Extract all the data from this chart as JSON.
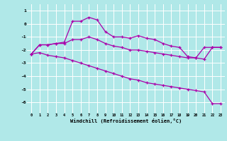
{
  "bg_color": "#b0e8e8",
  "grid_color": "#ffffff",
  "line_color": "#aa00aa",
  "x": [
    0,
    1,
    2,
    3,
    4,
    5,
    6,
    7,
    8,
    9,
    10,
    11,
    12,
    13,
    14,
    15,
    16,
    17,
    18,
    19,
    20,
    21,
    22,
    23
  ],
  "line1": [
    -2.3,
    -1.6,
    -1.6,
    -1.5,
    -1.4,
    0.2,
    0.2,
    0.5,
    0.3,
    -0.6,
    -1.0,
    -1.0,
    -1.1,
    -0.9,
    -1.1,
    -1.2,
    -1.5,
    -1.7,
    -1.8,
    -2.5,
    -2.6,
    -1.8,
    -1.8,
    -1.8
  ],
  "line2": [
    -2.3,
    -1.6,
    -1.6,
    -1.5,
    -1.5,
    -1.2,
    -1.2,
    -1.0,
    -1.2,
    -1.5,
    -1.7,
    -1.8,
    -2.0,
    -2.0,
    -2.1,
    -2.2,
    -2.3,
    -2.4,
    -2.5,
    -2.6,
    -2.6,
    -2.7,
    -1.8,
    -1.8
  ],
  "line3": [
    -2.3,
    -2.2,
    -2.4,
    -2.5,
    -2.6,
    -2.8,
    -3.0,
    -3.2,
    -3.4,
    -3.6,
    -3.8,
    -4.0,
    -4.2,
    -4.3,
    -4.5,
    -4.6,
    -4.7,
    -4.8,
    -4.9,
    -5.0,
    -5.1,
    -5.2,
    -6.1,
    -6.1
  ],
  "ylabel_ticks": [
    1,
    0,
    -1,
    -2,
    -3,
    -4,
    -5,
    -6
  ],
  "ylim": [
    -6.8,
    1.5
  ],
  "xlim": [
    -0.5,
    23.5
  ],
  "xlabel": "Windchill (Refroidissement éolien,°C)"
}
